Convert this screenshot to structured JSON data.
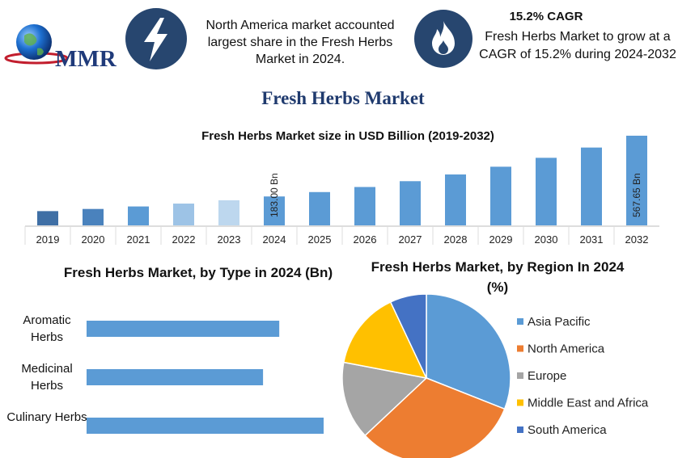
{
  "header": {
    "logo_text": "MMR",
    "highlight_text": "North America market accounted largest share in the Fresh Herbs Market in 2024.",
    "cagr_title": "15.2% CAGR",
    "cagr_text": "Fresh Herbs Market to grow at a CAGR of 15.2% during 2024-2032",
    "title": "Fresh Herbs Market"
  },
  "chart_data": [
    {
      "type": "bar",
      "title": "Fresh Herbs Market size in USD Billion (2019-2032)",
      "categories": [
        "2019",
        "2020",
        "2021",
        "2022",
        "2023",
        "2024",
        "2025",
        "2026",
        "2027",
        "2028",
        "2029",
        "2030",
        "2031",
        "2032"
      ],
      "values": [
        90.2,
        103.9,
        119.7,
        137.9,
        158.9,
        183.0,
        210.8,
        242.9,
        279.8,
        322.3,
        371.3,
        427.7,
        492.7,
        567.65
      ],
      "value_labels": [
        null,
        null,
        null,
        null,
        null,
        "183.00 Bn",
        null,
        null,
        null,
        null,
        null,
        null,
        null,
        "567.65 Bn"
      ],
      "colors": [
        "#3f6fa5",
        "#4a82bd",
        "#5b9bd5",
        "#9dc3e6",
        "#bdd7ee",
        "#5b9bd5",
        "#5b9bd5",
        "#5b9bd5",
        "#5b9bd5",
        "#5b9bd5",
        "#5b9bd5",
        "#5b9bd5",
        "#5b9bd5",
        "#5b9bd5"
      ]
    },
    {
      "type": "hbar",
      "title": "Fresh Herbs Market, by Type in 2024 (Bn)",
      "categories": [
        "Aromatic Herbs",
        "Medicinal Herbs",
        "Culinary Herbs"
      ],
      "values": [
        58.2,
        53.3,
        71.6
      ],
      "color": "#5b9bd5"
    },
    {
      "type": "pie",
      "title": "Fresh Herbs Market, by Region In 2024 (%)",
      "categories": [
        "Asia Pacific",
        "North America",
        "Europe",
        "Middle East and Africa",
        "South America"
      ],
      "values": [
        31,
        32,
        15,
        15,
        7
      ],
      "colors": [
        "#5b9bd5",
        "#ed7d31",
        "#a5a5a5",
        "#ffc000",
        "#4472c4"
      ]
    }
  ]
}
